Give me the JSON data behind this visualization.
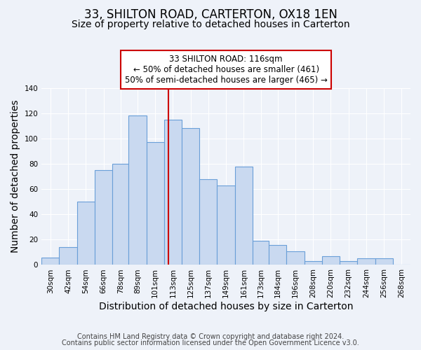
{
  "title": "33, SHILTON ROAD, CARTERTON, OX18 1EN",
  "subtitle": "Size of property relative to detached houses in Carterton",
  "xlabel": "Distribution of detached houses by size in Carterton",
  "ylabel": "Number of detached properties",
  "bin_labels": [
    "30sqm",
    "42sqm",
    "54sqm",
    "66sqm",
    "78sqm",
    "89sqm",
    "101sqm",
    "113sqm",
    "125sqm",
    "137sqm",
    "149sqm",
    "161sqm",
    "173sqm",
    "184sqm",
    "196sqm",
    "208sqm",
    "220sqm",
    "232sqm",
    "244sqm",
    "256sqm",
    "268sqm"
  ],
  "bin_edges": [
    30,
    42,
    54,
    66,
    78,
    89,
    101,
    113,
    125,
    137,
    149,
    161,
    173,
    184,
    196,
    208,
    220,
    232,
    244,
    256,
    268,
    280
  ],
  "bar_heights": [
    6,
    14,
    50,
    75,
    80,
    118,
    97,
    115,
    108,
    68,
    63,
    78,
    19,
    16,
    11,
    3,
    7,
    3,
    5,
    5,
    0
  ],
  "bar_color": "#c9d9f0",
  "bar_edge_color": "#6a9fd8",
  "vline_x": 116,
  "vline_color": "#cc0000",
  "annotation_line1": "33 SHILTON ROAD: 116sqm",
  "annotation_line2": "← 50% of detached houses are smaller (461)",
  "annotation_line3": "50% of semi-detached houses are larger (465) →",
  "annotation_box_color": "#ffffff",
  "annotation_box_edge_color": "#cc0000",
  "ylim": [
    0,
    140
  ],
  "yticks": [
    0,
    20,
    40,
    60,
    80,
    100,
    120,
    140
  ],
  "footnote1": "Contains HM Land Registry data © Crown copyright and database right 2024.",
  "footnote2": "Contains public sector information licensed under the Open Government Licence v3.0.",
  "background_color": "#eef2f9",
  "grid_color": "#ffffff",
  "title_fontsize": 12,
  "subtitle_fontsize": 10,
  "axis_label_fontsize": 10,
  "tick_fontsize": 7.5,
  "annotation_fontsize": 8.5,
  "footnote_fontsize": 7
}
